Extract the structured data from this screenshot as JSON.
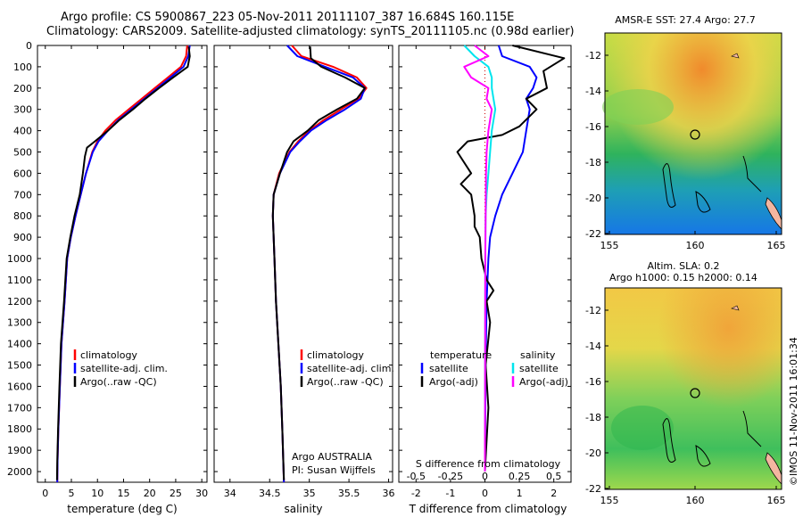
{
  "header": {
    "line1": "Argo profile: CS 5900867_223 05-Nov-2011 20111107_387 16.684S 160.115E",
    "line2": "Climatology: CARS2009. Satellite-adjusted climatology: synTS_20111105.nc (0.98d earlier)"
  },
  "side_stamp": "©IMOS 11-Nov-2011 16:01:34",
  "depth_ticks": [
    "0",
    "100",
    "200",
    "300",
    "400",
    "500",
    "600",
    "700",
    "800",
    "900",
    "1000",
    "1100",
    "1200",
    "1300",
    "1400",
    "1500",
    "1600",
    "1700",
    "1800",
    "1900",
    "2000"
  ],
  "panels": {
    "temperature": {
      "xlabel": "temperature (deg C)",
      "xticks": [
        "0",
        "5",
        "10",
        "15",
        "20",
        "25",
        "30"
      ],
      "legend": [
        "climatology",
        "satellite-adj. clim.",
        "Argo(..raw -QC)"
      ]
    },
    "salinity": {
      "xlabel": "salinity",
      "xticks": [
        "34",
        "34.5",
        "35",
        "35.5",
        "36"
      ],
      "legend": [
        "climatology",
        "satellite-adj. clim.",
        "Argo(..raw -QC)"
      ],
      "note1": "Argo AUSTRALIA",
      "note2": "PI: Susan Wijffels"
    },
    "difference": {
      "xlabel": "T difference from climatology",
      "top_label": "S difference from climatology",
      "xticks": [
        "-2",
        "-1",
        "0",
        "1",
        "2"
      ],
      "top_ticks": [
        "-0.5",
        "-0.25",
        "0",
        "0.25",
        "0.5"
      ],
      "legend_head_t": "temperature",
      "legend_head_s": "salinity",
      "legend_t": [
        "satellite",
        "Argo(-adj)"
      ],
      "legend_s": [
        "satellite",
        "Argo(-adj)"
      ]
    },
    "map_top": {
      "title": "AMSR-E SST: 27.4 Argo: 27.7",
      "yticks": [
        "-12",
        "-14",
        "-16",
        "-18",
        "-20",
        "-22"
      ],
      "xticks": [
        "155",
        "160",
        "165"
      ]
    },
    "map_bottom": {
      "title1": "Altim. SLA: 0.2",
      "title2": "Argo h1000: 0.15 h2000: 0.14",
      "yticks": [
        "-12",
        "-14",
        "-16",
        "-18",
        "-20",
        "-22"
      ],
      "xticks": [
        "155",
        "160",
        "165"
      ]
    }
  },
  "colors": {
    "climatology": "#ff0000",
    "satellite_adj": "#0000ff",
    "argo": "#000000",
    "sal_sat": "#00e5ee",
    "sal_argo": "#ff00ff"
  },
  "chart_data": [
    {
      "type": "line",
      "xlabel": "temperature (deg C)",
      "ylabel": "",
      "xlim": [
        -1.5,
        31
      ],
      "ylim": [
        2050,
        0
      ],
      "series": [
        {
          "name": "climatology",
          "color": "#ff0000",
          "points": [
            [
              27.2,
              0
            ],
            [
              27,
              50
            ],
            [
              26,
              100
            ],
            [
              23.5,
              150
            ],
            [
              21,
              200
            ],
            [
              18.5,
              250
            ],
            [
              16,
              300
            ],
            [
              13.5,
              350
            ],
            [
              11.5,
              400
            ],
            [
              10,
              450
            ],
            [
              9,
              500
            ],
            [
              7.8,
              600
            ],
            [
              6.8,
              700
            ],
            [
              5.8,
              800
            ],
            [
              4.9,
              900
            ],
            [
              4.2,
              1000
            ],
            [
              3.7,
              1200
            ],
            [
              3.1,
              1400
            ],
            [
              2.8,
              1600
            ],
            [
              2.5,
              1800
            ],
            [
              2.35,
              1950
            ],
            [
              2.3,
              2050
            ]
          ]
        },
        {
          "name": "satellite-adj. clim.",
          "color": "#0000ff",
          "points": [
            [
              27.7,
              0
            ],
            [
              27.4,
              50
            ],
            [
              26.5,
              100
            ],
            [
              24,
              150
            ],
            [
              21.5,
              200
            ],
            [
              19,
              250
            ],
            [
              16.5,
              300
            ],
            [
              14,
              350
            ],
            [
              12,
              400
            ],
            [
              10.2,
              450
            ],
            [
              9.1,
              500
            ],
            [
              7.8,
              600
            ],
            [
              6.8,
              700
            ],
            [
              5.8,
              800
            ],
            [
              4.9,
              900
            ],
            [
              4.2,
              1000
            ],
            [
              3.7,
              1200
            ],
            [
              3.1,
              1400
            ],
            [
              2.8,
              1600
            ],
            [
              2.5,
              1800
            ],
            [
              2.35,
              1950
            ],
            [
              2.3,
              2050
            ]
          ]
        },
        {
          "name": "Argo(..raw -QC)",
          "color": "#000000",
          "points": [
            [
              27.5,
              5
            ],
            [
              27.7,
              50
            ],
            [
              27.3,
              100
            ],
            [
              24.5,
              150
            ],
            [
              21.8,
              200
            ],
            [
              19.2,
              250
            ],
            [
              16.8,
              300
            ],
            [
              14.2,
              350
            ],
            [
              12,
              400
            ],
            [
              9.5,
              450
            ],
            [
              8,
              480
            ],
            [
              7.6,
              520
            ],
            [
              7.2,
              600
            ],
            [
              6.6,
              700
            ],
            [
              5.6,
              800
            ],
            [
              4.8,
              900
            ],
            [
              4.1,
              1000
            ],
            [
              3.6,
              1200
            ],
            [
              3,
              1400
            ],
            [
              2.7,
              1600
            ],
            [
              2.45,
              1800
            ],
            [
              2.3,
              1950
            ],
            [
              2.25,
              2040
            ]
          ]
        }
      ]
    },
    {
      "type": "line",
      "xlabel": "salinity",
      "ylabel": "",
      "xlim": [
        33.8,
        36.05
      ],
      "ylim": [
        2050,
        0
      ],
      "series": [
        {
          "name": "climatology",
          "color": "#ff0000",
          "points": [
            [
              34.78,
              0
            ],
            [
              34.9,
              50
            ],
            [
              35.3,
              100
            ],
            [
              35.6,
              150
            ],
            [
              35.72,
              200
            ],
            [
              35.62,
              250
            ],
            [
              35.4,
              300
            ],
            [
              35.18,
              350
            ],
            [
              35,
              400
            ],
            [
              34.86,
              450
            ],
            [
              34.75,
              500
            ],
            [
              34.62,
              600
            ],
            [
              34.55,
              700
            ],
            [
              34.54,
              800
            ],
            [
              34.55,
              900
            ],
            [
              34.56,
              1000
            ],
            [
              34.58,
              1200
            ],
            [
              34.61,
              1400
            ],
            [
              34.64,
              1600
            ],
            [
              34.66,
              1800
            ],
            [
              34.68,
              2050
            ]
          ]
        },
        {
          "name": "satellite-adj. clim.",
          "color": "#0000ff",
          "points": [
            [
              34.72,
              0
            ],
            [
              34.85,
              50
            ],
            [
              35.2,
              100
            ],
            [
              35.55,
              150
            ],
            [
              35.7,
              200
            ],
            [
              35.65,
              250
            ],
            [
              35.45,
              300
            ],
            [
              35.22,
              350
            ],
            [
              35.02,
              400
            ],
            [
              34.88,
              450
            ],
            [
              34.76,
              500
            ],
            [
              34.63,
              600
            ],
            [
              34.55,
              700
            ],
            [
              34.54,
              800
            ],
            [
              34.55,
              900
            ],
            [
              34.56,
              1000
            ],
            [
              34.58,
              1200
            ],
            [
              34.61,
              1400
            ],
            [
              34.64,
              1600
            ],
            [
              34.66,
              1800
            ],
            [
              34.68,
              2050
            ]
          ]
        },
        {
          "name": "Argo(..raw -QC)",
          "color": "#000000",
          "points": [
            [
              35.01,
              5
            ],
            [
              35.02,
              60
            ],
            [
              35.15,
              100
            ],
            [
              35.45,
              150
            ],
            [
              35.7,
              200
            ],
            [
              35.6,
              250
            ],
            [
              35.35,
              300
            ],
            [
              35.12,
              350
            ],
            [
              34.98,
              400
            ],
            [
              34.8,
              450
            ],
            [
              34.72,
              500
            ],
            [
              34.63,
              600
            ],
            [
              34.55,
              700
            ],
            [
              34.54,
              800
            ],
            [
              34.55,
              900
            ],
            [
              34.56,
              1000
            ],
            [
              34.58,
              1200
            ],
            [
              34.61,
              1400
            ],
            [
              34.64,
              1600
            ],
            [
              34.66,
              1800
            ],
            [
              34.68,
              2040
            ]
          ]
        }
      ]
    },
    {
      "type": "line",
      "xlabel": "T difference from climatology",
      "ylabel": "",
      "xlim": [
        -2.5,
        2.5
      ],
      "ylim": [
        2050,
        0
      ],
      "series": [
        {
          "name": "temperature satellite",
          "color": "#0000ff",
          "points": [
            [
              0.4,
              0
            ],
            [
              0.5,
              50
            ],
            [
              1.3,
              100
            ],
            [
              1.5,
              150
            ],
            [
              1.4,
              200
            ],
            [
              1.2,
              250
            ],
            [
              1.3,
              300
            ],
            [
              1.2,
              400
            ],
            [
              1.1,
              500
            ],
            [
              0.8,
              600
            ],
            [
              0.5,
              700
            ],
            [
              0.3,
              800
            ],
            [
              0.15,
              900
            ],
            [
              0.1,
              1000
            ],
            [
              0.05,
              1200
            ],
            [
              0.02,
              1500
            ],
            [
              0,
              2000
            ]
          ]
        },
        {
          "name": "temperature Argo(-adj)",
          "color": "#000000",
          "points": [
            [
              0.8,
              0
            ],
            [
              2.3,
              60
            ],
            [
              1.7,
              120
            ],
            [
              1.8,
              200
            ],
            [
              1.2,
              250
            ],
            [
              1.5,
              300
            ],
            [
              1.0,
              380
            ],
            [
              0.5,
              420
            ],
            [
              -0.5,
              450
            ],
            [
              -0.8,
              500
            ],
            [
              -0.4,
              600
            ],
            [
              -0.7,
              650
            ],
            [
              -0.4,
              700
            ],
            [
              -0.3,
              800
            ],
            [
              -0.3,
              850
            ],
            [
              -0.15,
              900
            ],
            [
              -0.1,
              1000
            ],
            [
              0.05,
              1100
            ],
            [
              0.25,
              1150
            ],
            [
              0.05,
              1200
            ],
            [
              0.15,
              1300
            ],
            [
              0.02,
              1500
            ],
            [
              0.1,
              1700
            ],
            [
              0,
              2000
            ]
          ]
        },
        {
          "name": "salinity satellite",
          "color": "#00e5ee",
          "points": [
            [
              -0.6,
              0
            ],
            [
              -0.3,
              50
            ],
            [
              0.1,
              100
            ],
            [
              0.2,
              150
            ],
            [
              0.2,
              200
            ],
            [
              0.25,
              250
            ],
            [
              0.3,
              300
            ],
            [
              0.2,
              400
            ],
            [
              0.15,
              500
            ],
            [
              0.1,
              600
            ],
            [
              0.05,
              700
            ],
            [
              0.02,
              800
            ],
            [
              0.01,
              1000
            ],
            [
              0,
              2000
            ]
          ]
        },
        {
          "name": "salinity Argo(-adj)",
          "color": "#ff00ff",
          "points": [
            [
              -0.3,
              0
            ],
            [
              0.1,
              50
            ],
            [
              -0.6,
              100
            ],
            [
              -0.4,
              150
            ],
            [
              0.1,
              200
            ],
            [
              0.05,
              250
            ],
            [
              0.2,
              300
            ],
            [
              0.1,
              400
            ],
            [
              0.05,
              500
            ],
            [
              0.03,
              600
            ],
            [
              0.02,
              800
            ],
            [
              0.01,
              1000
            ],
            [
              0,
              2000
            ]
          ]
        }
      ]
    }
  ]
}
